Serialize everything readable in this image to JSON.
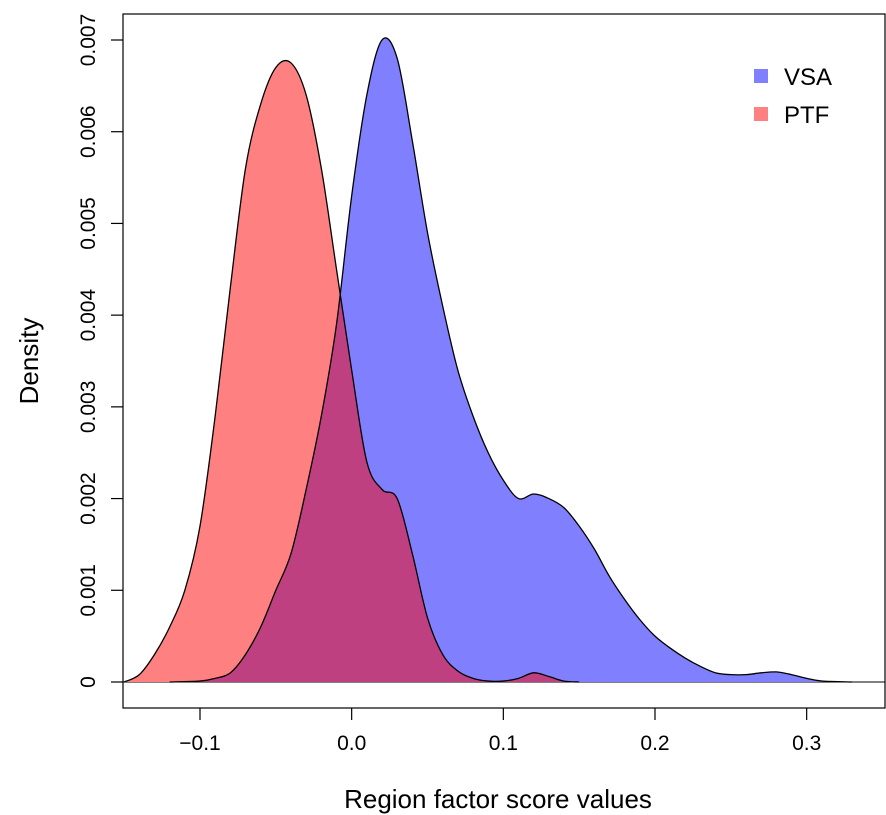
{
  "chart_data": {
    "type": "area",
    "title": "",
    "xlabel": "Region factor score values",
    "ylabel": "Density",
    "xlim": [
      -0.15,
      0.34
    ],
    "ylim": [
      0,
      0.0073
    ],
    "x_ticks": [
      {
        "value": -0.1,
        "label": "−0.1"
      },
      {
        "value": 0.0,
        "label": "0.0"
      },
      {
        "value": 0.1,
        "label": "0.1"
      },
      {
        "value": 0.2,
        "label": "0.2"
      },
      {
        "value": 0.3,
        "label": "0.3"
      }
    ],
    "y_ticks": [
      {
        "value": 0,
        "label": "0"
      },
      {
        "value": 0.001,
        "label": "0.001"
      },
      {
        "value": 0.002,
        "label": "0.002"
      },
      {
        "value": 0.003,
        "label": "0.003"
      },
      {
        "value": 0.004,
        "label": "0.004"
      },
      {
        "value": 0.005,
        "label": "0.005"
      },
      {
        "value": 0.006,
        "label": "0.006"
      },
      {
        "value": 0.007,
        "label": "0.007"
      }
    ],
    "grid": false,
    "legend_position": "top-right",
    "series": [
      {
        "name": "VSA",
        "color": "#8080ff",
        "points": [
          [
            -0.12,
            0
          ],
          [
            -0.1,
            1e-05
          ],
          [
            -0.09,
            4e-05
          ],
          [
            -0.08,
            0.0001
          ],
          [
            -0.07,
            0.0003
          ],
          [
            -0.06,
            0.0006
          ],
          [
            -0.05,
            0.001
          ],
          [
            -0.04,
            0.0014
          ],
          [
            -0.03,
            0.0021
          ],
          [
            -0.02,
            0.0029
          ],
          [
            -0.01,
            0.0039
          ],
          [
            0.0,
            0.0053
          ],
          [
            0.01,
            0.0064
          ],
          [
            0.02,
            0.007
          ],
          [
            0.03,
            0.0068
          ],
          [
            0.04,
            0.0059
          ],
          [
            0.05,
            0.0049
          ],
          [
            0.06,
            0.0041
          ],
          [
            0.07,
            0.0034
          ],
          [
            0.08,
            0.0029
          ],
          [
            0.09,
            0.0025
          ],
          [
            0.1,
            0.0022
          ],
          [
            0.11,
            0.002
          ],
          [
            0.12,
            0.00205
          ],
          [
            0.13,
            0.002
          ],
          [
            0.14,
            0.0019
          ],
          [
            0.15,
            0.0017
          ],
          [
            0.16,
            0.00145
          ],
          [
            0.17,
            0.00115
          ],
          [
            0.18,
            0.0009
          ],
          [
            0.19,
            0.00068
          ],
          [
            0.2,
            0.0005
          ],
          [
            0.21,
            0.00037
          ],
          [
            0.22,
            0.00026
          ],
          [
            0.23,
            0.00017
          ],
          [
            0.24,
            0.0001
          ],
          [
            0.25,
            8e-05
          ],
          [
            0.26,
            8e-05
          ],
          [
            0.27,
            0.0001
          ],
          [
            0.28,
            0.00011
          ],
          [
            0.29,
            8e-05
          ],
          [
            0.3,
            4e-05
          ],
          [
            0.31,
            1e-05
          ],
          [
            0.33,
            0
          ]
        ]
      },
      {
        "name": "PTF",
        "color": "#ff8080",
        "points": [
          [
            -0.15,
            0
          ],
          [
            -0.14,
            8e-05
          ],
          [
            -0.13,
            0.0003
          ],
          [
            -0.12,
            0.0006
          ],
          [
            -0.11,
            0.001
          ],
          [
            -0.1,
            0.0017
          ],
          [
            -0.09,
            0.0029
          ],
          [
            -0.08,
            0.0043
          ],
          [
            -0.07,
            0.0056
          ],
          [
            -0.06,
            0.0063
          ],
          [
            -0.05,
            0.0067
          ],
          [
            -0.04,
            0.00675
          ],
          [
            -0.03,
            0.0064
          ],
          [
            -0.02,
            0.0056
          ],
          [
            -0.01,
            0.0045
          ],
          [
            0.0,
            0.0034
          ],
          [
            0.01,
            0.0024
          ],
          [
            0.02,
            0.0021
          ],
          [
            0.03,
            0.002
          ],
          [
            0.04,
            0.0014
          ],
          [
            0.05,
            0.0007
          ],
          [
            0.06,
            0.0003
          ],
          [
            0.07,
            0.00012
          ],
          [
            0.08,
            4e-05
          ],
          [
            0.09,
            1e-05
          ],
          [
            0.1,
            1e-05
          ],
          [
            0.11,
            4e-05
          ],
          [
            0.12,
            0.0001
          ],
          [
            0.13,
            6e-05
          ],
          [
            0.14,
            1e-05
          ],
          [
            0.15,
            0
          ]
        ]
      }
    ],
    "overlap_color": "#bf4080"
  }
}
